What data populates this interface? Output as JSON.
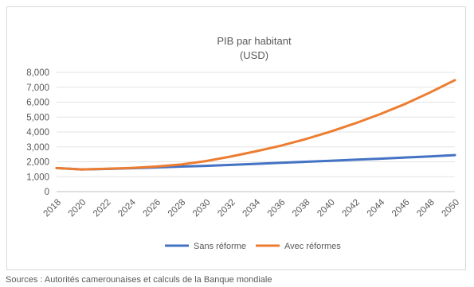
{
  "chart_data": {
    "type": "line",
    "title": "PIB par habitant",
    "subtitle": "(USD)",
    "xlabel": "",
    "ylabel": "",
    "x": [
      2018,
      2020,
      2022,
      2024,
      2026,
      2028,
      2030,
      2032,
      2034,
      2036,
      2038,
      2040,
      2042,
      2044,
      2046,
      2048,
      2050
    ],
    "x_tick_labels": [
      "2018",
      "2020",
      "2022",
      "2024",
      "2026",
      "2028",
      "2030",
      "2032",
      "2034",
      "2036",
      "2038",
      "2040",
      "2042",
      "2044",
      "2046",
      "2048",
      "2050"
    ],
    "ylim": [
      0,
      8000
    ],
    "y_ticks": [
      0,
      1000,
      2000,
      3000,
      4000,
      5000,
      6000,
      7000,
      8000
    ],
    "y_tick_labels": [
      "0",
      "1,000",
      "2,000",
      "3,000",
      "4,000",
      "5,000",
      "6,000",
      "7,000",
      "8,000"
    ],
    "grid": true,
    "legend_position": "bottom",
    "series": [
      {
        "name": "Sans réforme",
        "color": "#4472c4",
        "values": [
          1580,
          1490,
          1520,
          1570,
          1620,
          1680,
          1730,
          1790,
          1860,
          1930,
          2000,
          2070,
          2140,
          2210,
          2290,
          2360,
          2450
        ]
      },
      {
        "name": "Avec réformes",
        "color": "#ed7d31",
        "values": [
          1580,
          1490,
          1530,
          1590,
          1680,
          1820,
          2050,
          2350,
          2700,
          3080,
          3520,
          4020,
          4580,
          5200,
          5880,
          6650,
          7480
        ]
      }
    ]
  },
  "source_note": "Sources : Autorités camerounaises et calculs de la Banque mondiale"
}
